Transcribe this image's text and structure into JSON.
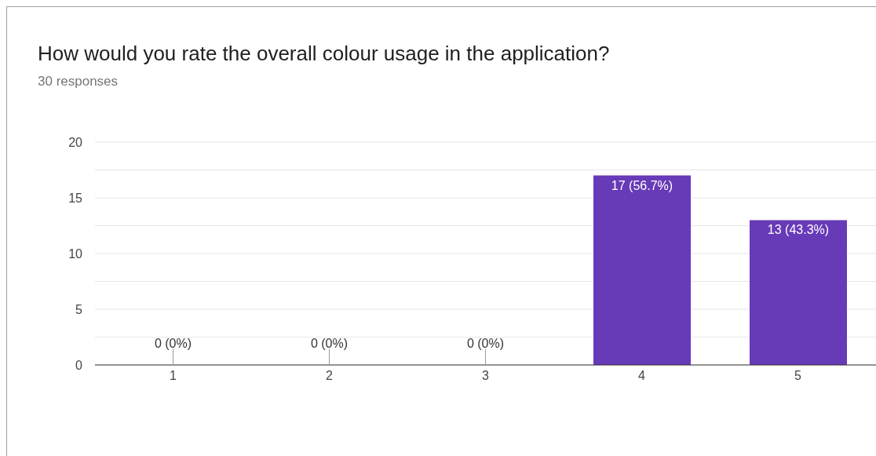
{
  "chart_data": {
    "type": "bar",
    "title": "How would you rate the overall colour usage in the application?",
    "subtitle": "30 responses",
    "categories": [
      "1",
      "2",
      "3",
      "4",
      "5"
    ],
    "values": [
      0,
      0,
      0,
      17,
      13
    ],
    "value_labels": [
      "0 (0%)",
      "0 (0%)",
      "0 (0%)",
      "17 (56.7%)",
      "13 (43.3%)"
    ],
    "color": "#673ab7",
    "ylim": [
      0,
      20
    ],
    "yticks": [
      0,
      {
        "value": 2.5,
        "label": null
      },
      5,
      {
        "value": 7.5,
        "label": null
      },
      10,
      {
        "value": 12.5,
        "label": null
      },
      15,
      {
        "value": 17.5,
        "label": null
      },
      20
    ],
    "grid": "y"
  }
}
